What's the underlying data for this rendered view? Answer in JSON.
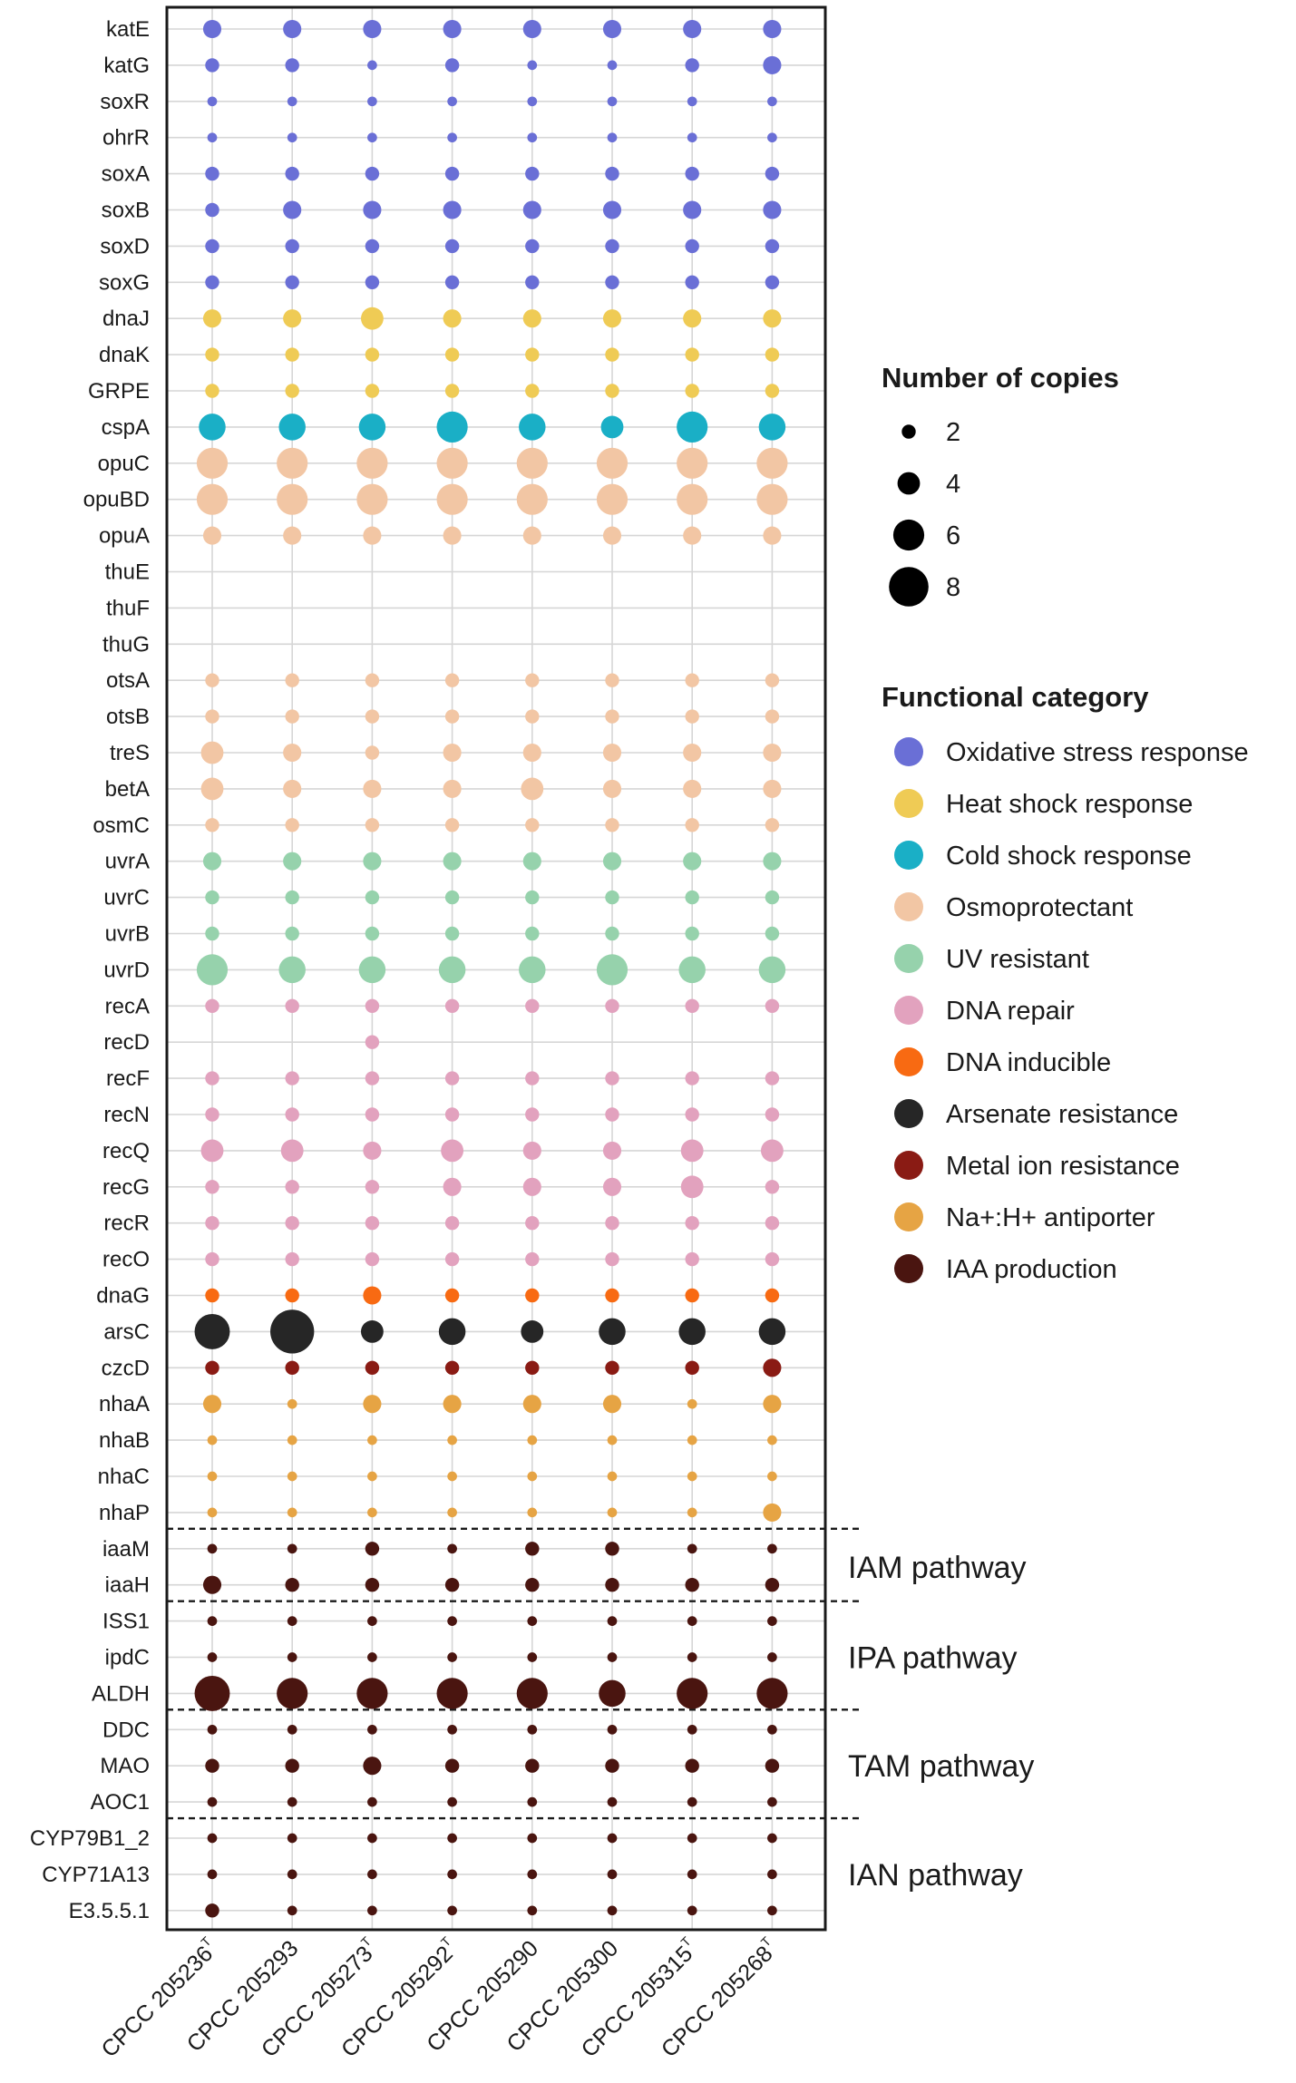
{
  "chart_data": {
    "type": "dot-matrix",
    "title": "",
    "genes": [
      "katE",
      "katG",
      "soxR",
      "ohrR",
      "soxA",
      "soxB",
      "soxD",
      "soxG",
      "dnaJ",
      "dnaK",
      "GRPE",
      "cspA",
      "opuC",
      "opuBD",
      "opuA",
      "thuE",
      "thuF",
      "thuG",
      "otsA",
      "otsB",
      "treS",
      "betA",
      "osmC",
      "uvrA",
      "uvrC",
      "uvrB",
      "uvrD",
      "recA",
      "recD",
      "recF",
      "recN",
      "recQ",
      "recG",
      "recR",
      "recO",
      "dnaG",
      "arsC",
      "czcD",
      "nhaA",
      "nhaB",
      "nhaC",
      "nhaP",
      "iaaM",
      "iaaH",
      "ISS1",
      "ipdC",
      "ALDH",
      "DDC",
      "MAO",
      "AOC1",
      "CYP79B1_2",
      "CYP71A13",
      "E3.5.5.1"
    ],
    "gene_categories": [
      "Oxidative stress response",
      "Oxidative stress response",
      "Oxidative stress response",
      "Oxidative stress response",
      "Oxidative stress response",
      "Oxidative stress response",
      "Oxidative stress response",
      "Oxidative stress response",
      "Heat shock response",
      "Heat shock response",
      "Heat shock response",
      "Cold shock response",
      "Osmoprotectant",
      "Osmoprotectant",
      "Osmoprotectant",
      "Osmoprotectant",
      "Osmoprotectant",
      "Osmoprotectant",
      "Osmoprotectant",
      "Osmoprotectant",
      "Osmoprotectant",
      "Osmoprotectant",
      "Osmoprotectant",
      "UV resistant",
      "UV resistant",
      "UV resistant",
      "UV resistant",
      "DNA repair",
      "DNA repair",
      "DNA repair",
      "DNA repair",
      "DNA repair",
      "DNA repair",
      "DNA repair",
      "DNA repair",
      "DNA inducible",
      "Arsenate resistance",
      "Metal ion resistance",
      "Na+:H+ antiporter",
      "Na+:H+ antiporter",
      "Na+:H+ antiporter",
      "Na+:H+ antiporter",
      "IAA production",
      "IAA production",
      "IAA production",
      "IAA production",
      "IAA production",
      "IAA production",
      "IAA production",
      "IAA production",
      "IAA production",
      "IAA production",
      "IAA production"
    ],
    "strains": [
      {
        "name": "CPCC 205236",
        "sup": "T"
      },
      {
        "name": "CPCC 205293",
        "sup": ""
      },
      {
        "name": "CPCC 205273",
        "sup": "T"
      },
      {
        "name": "CPCC 205292",
        "sup": "T"
      },
      {
        "name": "CPCC 205290",
        "sup": ""
      },
      {
        "name": "CPCC 205300",
        "sup": ""
      },
      {
        "name": "CPCC 205315",
        "sup": "T"
      },
      {
        "name": "CPCC 205268",
        "sup": "T"
      }
    ],
    "copies": [
      [
        3,
        3,
        3,
        3,
        3,
        3,
        3,
        3
      ],
      [
        2,
        2,
        1,
        2,
        1,
        1,
        2,
        3
      ],
      [
        1,
        1,
        1,
        1,
        1,
        1,
        1,
        1
      ],
      [
        1,
        1,
        1,
        1,
        1,
        1,
        1,
        1
      ],
      [
        2,
        2,
        2,
        2,
        2,
        2,
        2,
        2
      ],
      [
        2,
        3,
        3,
        3,
        3,
        3,
        3,
        3
      ],
      [
        2,
        2,
        2,
        2,
        2,
        2,
        2,
        2
      ],
      [
        2,
        2,
        2,
        2,
        2,
        2,
        2,
        2
      ],
      [
        3,
        3,
        4,
        3,
        3,
        3,
        3,
        3
      ],
      [
        2,
        2,
        2,
        2,
        2,
        2,
        2,
        2
      ],
      [
        2,
        2,
        2,
        2,
        2,
        2,
        2,
        2
      ],
      [
        5,
        5,
        5,
        6,
        5,
        4,
        6,
        5
      ],
      [
        6,
        6,
        6,
        6,
        6,
        6,
        6,
        6
      ],
      [
        6,
        6,
        6,
        6,
        6,
        6,
        6,
        6
      ],
      [
        3,
        3,
        3,
        3,
        3,
        3,
        3,
        3
      ],
      [
        0,
        0,
        0,
        0,
        0,
        0,
        0,
        0
      ],
      [
        0,
        0,
        0,
        0,
        0,
        0,
        0,
        0
      ],
      [
        0,
        0,
        0,
        0,
        0,
        0,
        0,
        0
      ],
      [
        2,
        2,
        2,
        2,
        2,
        2,
        2,
        2
      ],
      [
        2,
        2,
        2,
        2,
        2,
        2,
        2,
        2
      ],
      [
        4,
        3,
        2,
        3,
        3,
        3,
        3,
        3
      ],
      [
        4,
        3,
        3,
        3,
        4,
        3,
        3,
        3
      ],
      [
        2,
        2,
        2,
        2,
        2,
        2,
        2,
        2
      ],
      [
        3,
        3,
        3,
        3,
        3,
        3,
        3,
        3
      ],
      [
        2,
        2,
        2,
        2,
        2,
        2,
        2,
        2
      ],
      [
        2,
        2,
        2,
        2,
        2,
        2,
        2,
        2
      ],
      [
        6,
        5,
        5,
        5,
        5,
        6,
        5,
        5
      ],
      [
        2,
        2,
        2,
        2,
        2,
        2,
        2,
        2
      ],
      [
        0,
        0,
        2,
        0,
        0,
        0,
        0,
        0
      ],
      [
        2,
        2,
        2,
        2,
        2,
        2,
        2,
        2
      ],
      [
        2,
        2,
        2,
        2,
        2,
        2,
        2,
        2
      ],
      [
        4,
        4,
        3,
        4,
        3,
        3,
        4,
        4
      ],
      [
        2,
        2,
        2,
        3,
        3,
        3,
        4,
        2
      ],
      [
        2,
        2,
        2,
        2,
        2,
        2,
        2,
        2
      ],
      [
        2,
        2,
        2,
        2,
        2,
        2,
        2,
        2
      ],
      [
        2,
        2,
        3,
        2,
        2,
        2,
        2,
        2
      ],
      [
        7,
        9,
        4,
        5,
        4,
        5,
        5,
        5
      ],
      [
        2,
        2,
        2,
        2,
        2,
        2,
        2,
        3
      ],
      [
        3,
        1,
        3,
        3,
        3,
        3,
        1,
        3
      ],
      [
        1,
        1,
        1,
        1,
        1,
        1,
        1,
        1
      ],
      [
        1,
        1,
        1,
        1,
        1,
        1,
        1,
        1
      ],
      [
        1,
        1,
        1,
        1,
        1,
        1,
        1,
        3
      ],
      [
        1,
        1,
        2,
        1,
        2,
        2,
        1,
        1
      ],
      [
        3,
        2,
        2,
        2,
        2,
        2,
        2,
        2
      ],
      [
        1,
        1,
        1,
        1,
        1,
        1,
        1,
        1
      ],
      [
        1,
        1,
        1,
        1,
        1,
        1,
        1,
        1
      ],
      [
        7,
        6,
        6,
        6,
        6,
        5,
        6,
        6
      ],
      [
        1,
        1,
        1,
        1,
        1,
        1,
        1,
        1
      ],
      [
        2,
        2,
        3,
        2,
        2,
        2,
        2,
        2
      ],
      [
        1,
        1,
        1,
        1,
        1,
        1,
        1,
        1
      ],
      [
        1,
        1,
        1,
        1,
        1,
        1,
        1,
        1
      ],
      [
        1,
        1,
        1,
        1,
        1,
        1,
        1,
        1
      ],
      [
        2,
        1,
        1,
        1,
        1,
        1,
        1,
        1
      ]
    ],
    "size_legend": {
      "title": "Number of copies",
      "values": [
        2,
        4,
        6,
        8
      ],
      "color": "#000000"
    },
    "color_legend": {
      "title": "Functional category",
      "items": [
        {
          "label": "Oxidative stress response",
          "color": "#6A6FD6"
        },
        {
          "label": "Heat shock response",
          "color": "#EFCB55"
        },
        {
          "label": "Cold shock response",
          "color": "#1AAFC6"
        },
        {
          "label": "Osmoprotectant",
          "color": "#F2C6A4"
        },
        {
          "label": "UV resistant",
          "color": "#96D2AC"
        },
        {
          "label": "DNA repair",
          "color": "#E2A2BE"
        },
        {
          "label": "DNA inducible",
          "color": "#F86A12"
        },
        {
          "label": "Arsenate resistance",
          "color": "#262626"
        },
        {
          "label": "Metal ion resistance",
          "color": "#8A1B14"
        },
        {
          "label": "Na+:H+ antiporter",
          "color": "#E6A444"
        },
        {
          "label": "IAA production",
          "color": "#4A1510"
        }
      ]
    },
    "pathways": [
      {
        "label": "IAM pathway",
        "genes": [
          "iaaM",
          "iaaH"
        ]
      },
      {
        "label": "IPA pathway",
        "genes": [
          "ISS1",
          "ipdC",
          "ALDH"
        ]
      },
      {
        "label": "TAM pathway",
        "genes": [
          "DDC",
          "MAO",
          "AOC1"
        ]
      },
      {
        "label": "IAN pathway",
        "genes": [
          "CYP79B1_2",
          "CYP71A13",
          "E3.5.5.1"
        ]
      }
    ],
    "pathway_separators_after": [
      "nhaP",
      "iaaH",
      "ALDH",
      "AOC1"
    ],
    "grid": true
  }
}
